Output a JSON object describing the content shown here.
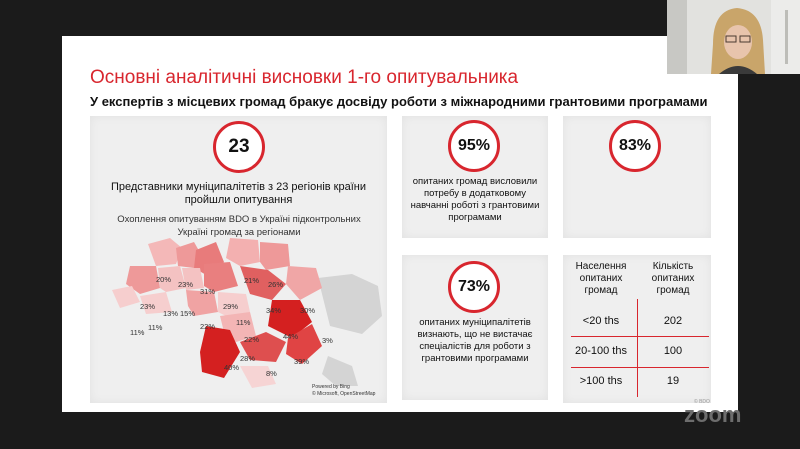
{
  "slide": {
    "title": "Основні аналітичні висновки 1-го опитувальника",
    "subtitle": "У експертів з місцевих громад бракує досвіду роботи з міжнародними грантовими програмами",
    "watermark": "© BDO"
  },
  "map_panel": {
    "stat": "23",
    "caption": "Представники муніципалітетів з 23 регіонів країни пройшли опитування",
    "map_title": "Охоплення опитуванням BDO в Україні підконтрольних Україні громад за регіонами",
    "credit_line1": "Powered by Bing",
    "credit_line2": "© Microsoft, OpenStreetMap",
    "region_labels": [
      "20%",
      "23%",
      "31%",
      "21%",
      "26%",
      "23%",
      "13%",
      "15%",
      "29%",
      "34%",
      "30%",
      "11%",
      "11%",
      "22%",
      "11%",
      "22%",
      "44%",
      "3%",
      "28%",
      "39%",
      "40%",
      "8%"
    ]
  },
  "stat_95": {
    "stat": "95%",
    "caption": "опитаних громад висловили потребу в додатковому навчанні роботі з грантовими програмами"
  },
  "stat_83": {
    "stat": "83%"
  },
  "stat_73": {
    "stat": "73%",
    "caption": "опитаних муніципалітетів визнають, що не вистачає спеціалістів для роботи з грантовими програмами"
  },
  "table": {
    "col1_header": "Населення опитаних громад",
    "col2_header": "Кількість опитаних громад",
    "rows": [
      {
        "population": "<20 ths",
        "count": "202"
      },
      {
        "population": "20-100 ths",
        "count": "100"
      },
      {
        "population": ">100 ths",
        "count": "19"
      }
    ]
  },
  "zoom": {
    "logo": "zoom"
  },
  "colors": {
    "accent": "#d8262e",
    "panel": "#efefef",
    "background": "#1b1b1b"
  }
}
